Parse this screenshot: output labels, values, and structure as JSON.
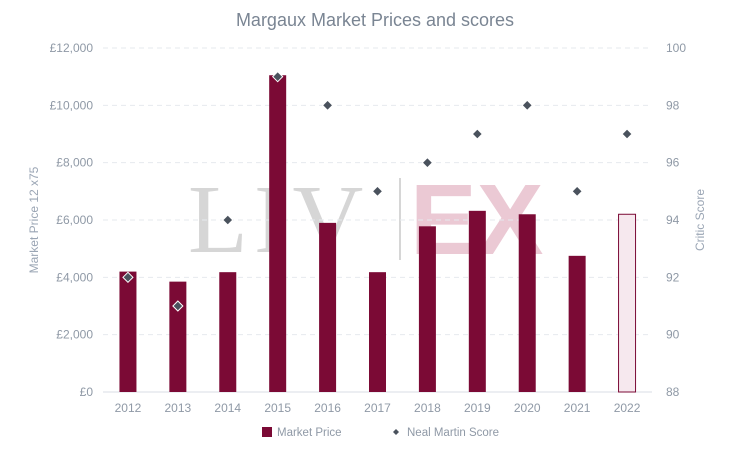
{
  "chart_data": {
    "type": "bar",
    "title": "Margaux Market Prices and scores",
    "ylabel": "Market Price 12 x75",
    "y2label": "Critic Score",
    "categories": [
      "2012",
      "2013",
      "2014",
      "2015",
      "2016",
      "2017",
      "2018",
      "2019",
      "2020",
      "2021",
      "2022"
    ],
    "ylim": [
      0,
      12000
    ],
    "y2lim": [
      88,
      100
    ],
    "yticks": [
      0,
      2000,
      4000,
      6000,
      8000,
      10000,
      12000
    ],
    "yticks_labels": [
      "£0",
      "£2,000",
      "£4,000",
      "£6,000",
      "£8,000",
      "£10,000",
      "£12,000"
    ],
    "y2ticks": [
      88,
      90,
      92,
      94,
      96,
      98,
      100
    ],
    "grid": true,
    "legend_position": "bottom",
    "series": [
      {
        "name": "Market Price",
        "kind": "bar",
        "axis": "left",
        "color": "#7b0a35",
        "values": [
          4200,
          3850,
          4180,
          11050,
          5900,
          4180,
          5780,
          6320,
          6200,
          4750,
          6200
        ],
        "highlight_last": {
          "fill": "#f6e8ee",
          "stroke": "#7b0a35"
        }
      },
      {
        "name": "Neal Martin Score",
        "kind": "scatter",
        "axis": "right",
        "color": "#4a525d",
        "values": [
          92,
          91,
          94,
          99,
          98,
          95,
          96,
          97,
          98,
          95,
          97
        ]
      }
    ],
    "watermark": {
      "left": "LIV",
      "right": "EX",
      "left_color": "#d6d6d6",
      "right_color": "#ebc9d4"
    }
  }
}
